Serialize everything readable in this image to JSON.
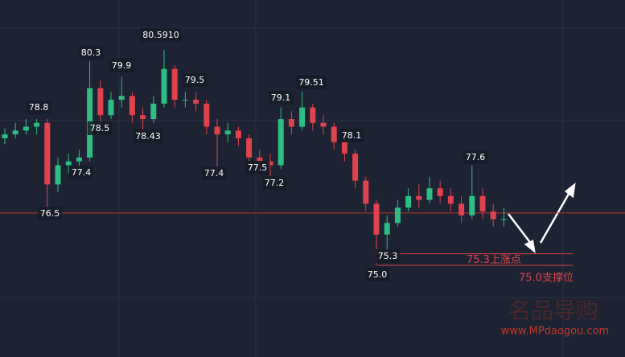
{
  "chart_data": {
    "type": "candlestick",
    "ylim": [
      72.62,
      81.89
    ],
    "open": [
      78.3,
      78.4,
      78.5,
      78.6,
      78.7,
      77.1,
      77.6,
      77.7,
      77.8,
      79.6,
      78.9,
      79.3,
      79.4,
      78.9,
      78.8,
      79.2,
      80.1,
      79.3,
      79.3,
      79.2,
      78.6,
      78.4,
      78.5,
      78.3,
      77.8,
      77.7,
      77.6,
      78.8,
      78.6,
      79.1,
      78.7,
      78.6,
      78.2,
      77.9,
      77.2,
      76.6,
      75.8,
      76.1,
      76.5,
      76.8,
      76.7,
      77.0,
      76.8,
      76.6,
      76.3,
      76.8,
      76.4,
      76.2
    ],
    "high": [
      78.55,
      78.7,
      78.8,
      78.8,
      78.8,
      77.8,
      77.9,
      78.0,
      80.3,
      79.8,
      79.5,
      79.9,
      79.5,
      79.1,
      79.4,
      80.59,
      80.2,
      79.5,
      79.5,
      79.3,
      78.8,
      78.7,
      78.6,
      78.4,
      78.0,
      77.9,
      79.1,
      79.0,
      79.51,
      79.2,
      78.9,
      78.7,
      78.3,
      78.0,
      77.3,
      76.7,
      76.3,
      76.7,
      77.0,
      77.1,
      77.3,
      77.2,
      77.0,
      76.8,
      77.6,
      77.0,
      76.6,
      76.5
    ],
    "low": [
      78.15,
      78.3,
      78.4,
      78.4,
      76.5,
      76.9,
      77.4,
      77.4,
      77.7,
      78.7,
      78.8,
      79.1,
      78.7,
      78.43,
      78.7,
      79.1,
      79.1,
      79.1,
      79.0,
      78.4,
      77.4,
      78.2,
      78.1,
      77.6,
      77.5,
      77.2,
      77.5,
      78.4,
      78.5,
      78.5,
      78.4,
      78.0,
      77.7,
      77.0,
      76.4,
      75.0,
      75.3,
      76.0,
      76.4,
      76.5,
      76.6,
      76.6,
      76.4,
      76.1,
      76.2,
      76.2,
      76.0,
      76.0
    ],
    "close": [
      78.4,
      78.5,
      78.6,
      78.7,
      77.1,
      77.6,
      77.7,
      77.8,
      79.6,
      78.9,
      79.3,
      79.4,
      78.9,
      78.8,
      79.2,
      80.1,
      79.3,
      79.3,
      79.2,
      78.6,
      78.4,
      78.5,
      78.3,
      77.8,
      77.7,
      77.6,
      78.8,
      78.6,
      79.1,
      78.7,
      78.6,
      78.2,
      77.9,
      77.2,
      76.6,
      75.8,
      76.1,
      76.5,
      76.8,
      76.7,
      77.0,
      76.8,
      76.6,
      76.3,
      76.8,
      76.4,
      76.2,
      76.2
    ],
    "up_color": "#2ebd85",
    "down_color": "#e0424e",
    "price_labels": [
      "78.8",
      "76.5",
      "80.3",
      "77.4",
      "78.5",
      "79.9",
      "78.43",
      "80.5910",
      "79.5",
      "77.4",
      "77.5",
      "77.2",
      "79.1",
      "79.51",
      "78.1",
      "75.3",
      "75.0",
      "77.6"
    ],
    "hline": 76.36,
    "levels": [
      {
        "value": 75.3,
        "label": "75.3上涨点"
      },
      {
        "value": 75.0,
        "label": "75.0支撑位"
      }
    ],
    "watermark": [
      "名品导购",
      "www.MPdaogou.com"
    ]
  }
}
